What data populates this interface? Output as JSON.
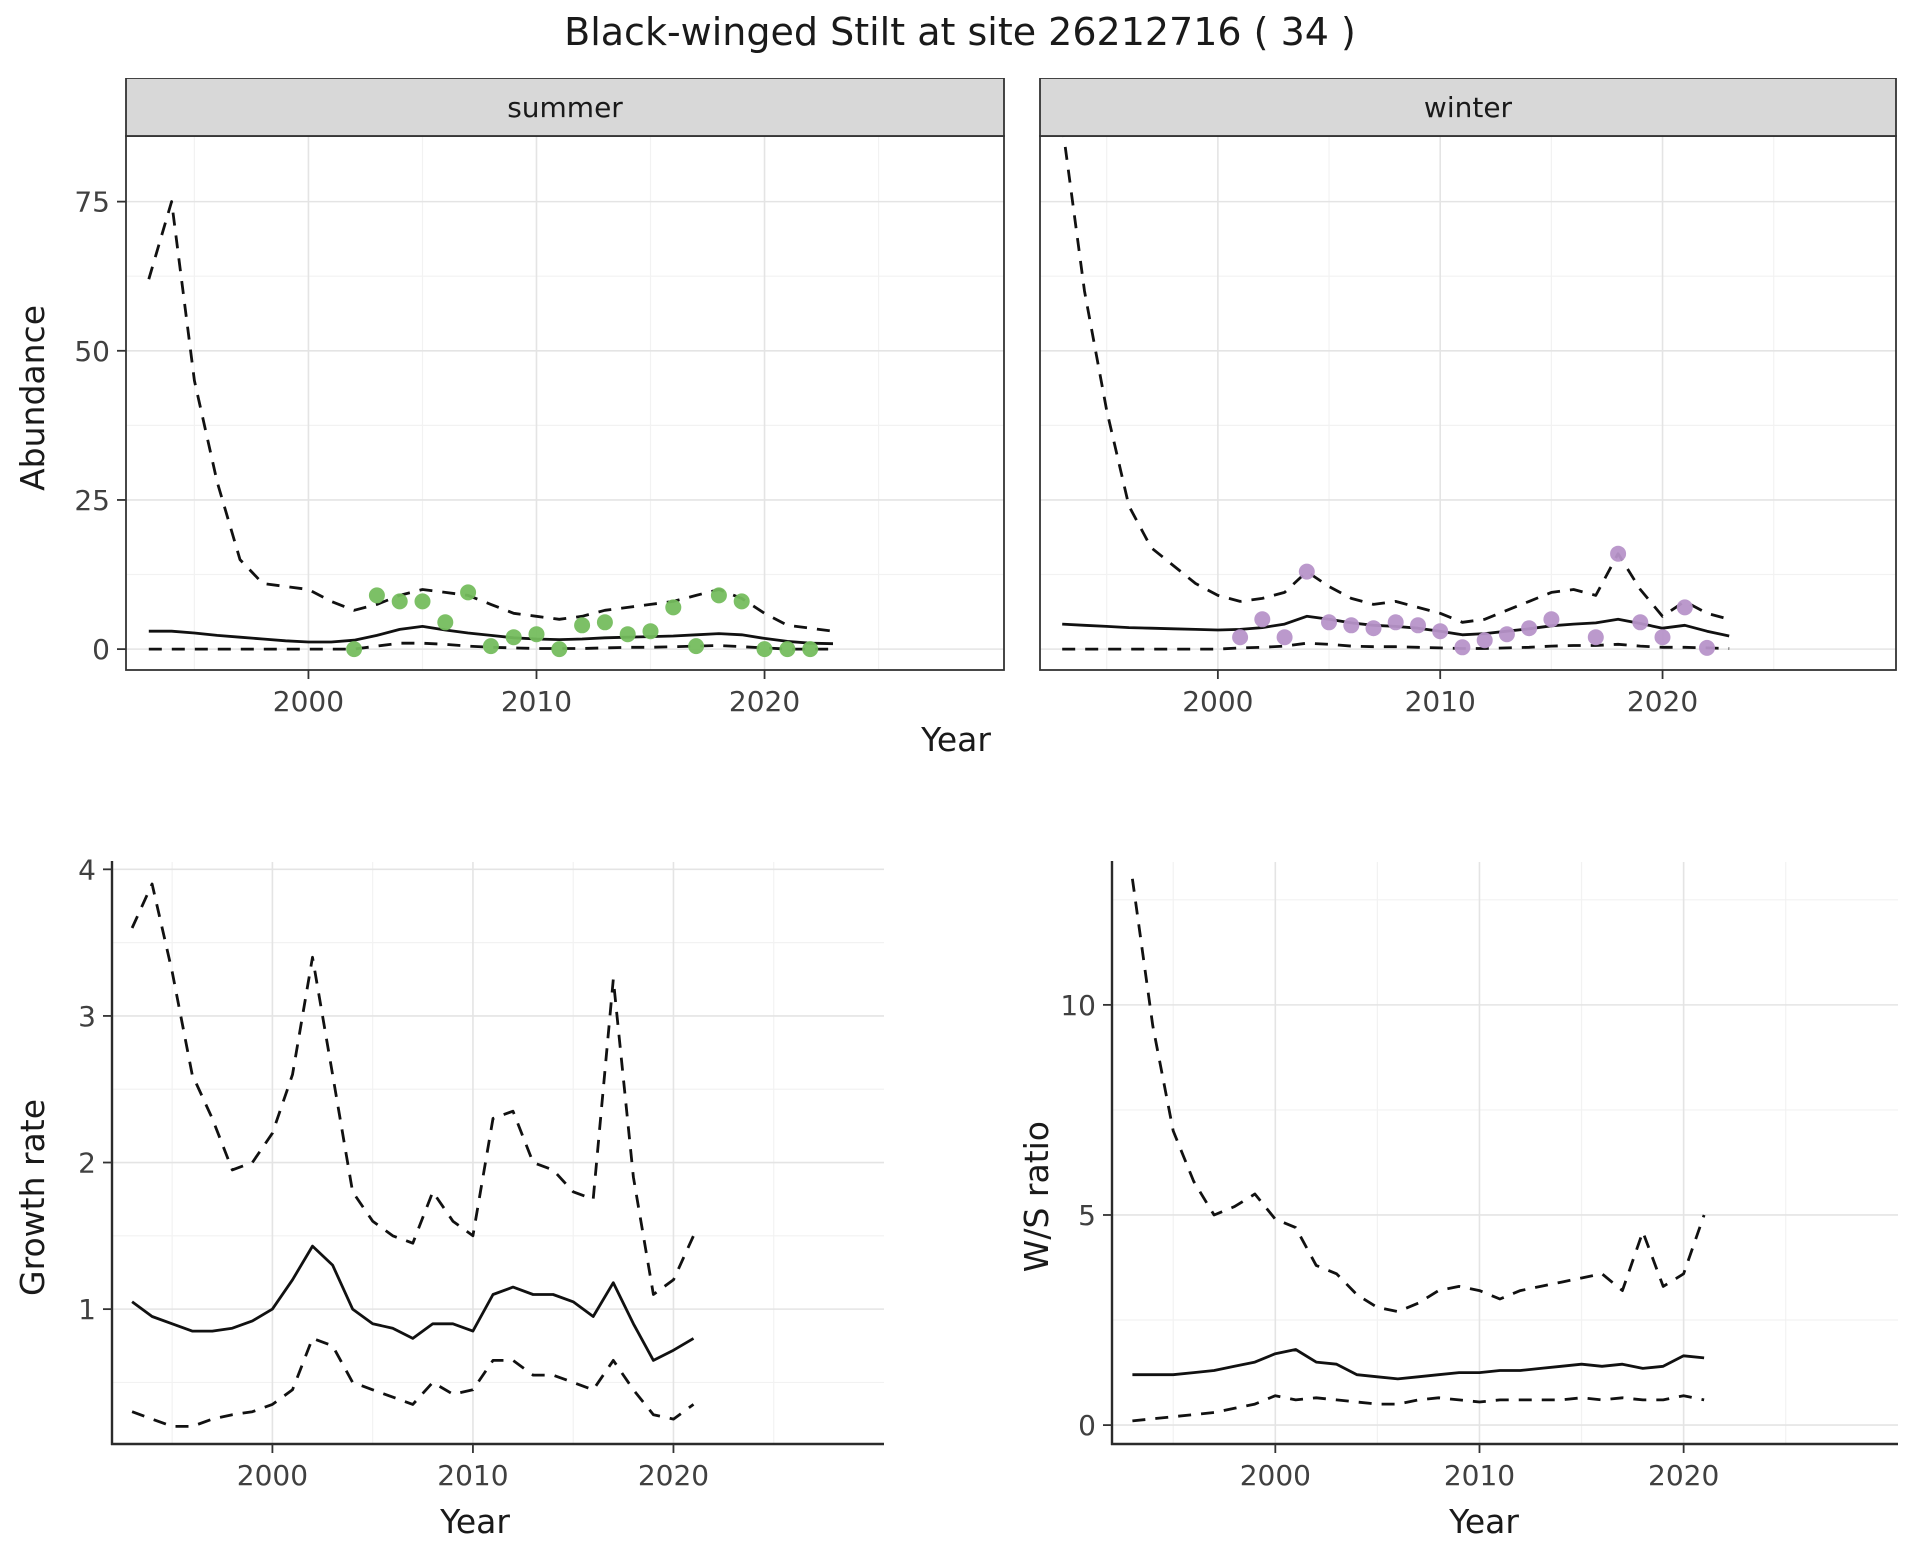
{
  "title": "Black-winged Stilt at site 26212716 ( 34 )",
  "labels": {
    "year": "Year"
  },
  "colors": {
    "line": "#111111",
    "grid_major": "#e4e4e4",
    "grid_minor": "#f2f2f2",
    "panel_border": "#333333",
    "axis_line": "#2b2b2b",
    "strip_bg": "#d8d8d8",
    "axis_text": "#404040",
    "summer_points": "#75bd5e",
    "winter_points": "#b793c9"
  },
  "chart_data": [
    {
      "id": "abundance-summer",
      "type": "line",
      "title": "summer",
      "xlabel": "Year",
      "ylabel": "Abundance",
      "xlim": [
        1992,
        2030.5
      ],
      "ylim": [
        -3.5,
        86
      ],
      "xticks": [
        2000,
        2010,
        2020
      ],
      "yticks": [
        0,
        25,
        50,
        75
      ],
      "xminor": [
        1995,
        2005,
        2015,
        2025
      ],
      "yminor": [
        12.5,
        37.5,
        62.5
      ],
      "x": [
        1993,
        1994,
        1995,
        1996,
        1997,
        1998,
        1999,
        2000,
        2001,
        2002,
        2003,
        2004,
        2005,
        2006,
        2007,
        2008,
        2009,
        2010,
        2011,
        2012,
        2013,
        2014,
        2015,
        2016,
        2017,
        2018,
        2019,
        2020,
        2021,
        2022,
        2023
      ],
      "series": [
        {
          "name": "upper-ci",
          "style": "dashed",
          "y": [
            62,
            75,
            45,
            28,
            15,
            11,
            10.5,
            10,
            8,
            6.5,
            7.5,
            9,
            10,
            9.5,
            9,
            7.5,
            6,
            5.5,
            5,
            5.5,
            6.5,
            7,
            7.5,
            8,
            9,
            10,
            8.5,
            6,
            4,
            3.5,
            3
          ]
        },
        {
          "name": "predicted-mean",
          "style": "solid",
          "y": [
            3,
            3,
            2.7,
            2.3,
            2,
            1.7,
            1.4,
            1.2,
            1.2,
            1.5,
            2.3,
            3.3,
            3.8,
            3.2,
            2.7,
            2.3,
            1.9,
            1.7,
            1.6,
            1.7,
            1.9,
            2,
            2.1,
            2.2,
            2.4,
            2.6,
            2.4,
            1.8,
            1.3,
            1,
            0.9
          ]
        },
        {
          "name": "lower-ci",
          "style": "dashed",
          "y": [
            0,
            0,
            0,
            0,
            0,
            0,
            0,
            0,
            0,
            0,
            0.5,
            1,
            1,
            0.8,
            0.5,
            0.3,
            0.2,
            0.1,
            0.1,
            0.1,
            0.2,
            0.3,
            0.3,
            0.4,
            0.5,
            0.6,
            0.4,
            0.2,
            0,
            0,
            0
          ]
        },
        {
          "name": "observed-counts",
          "style": "points",
          "color": "#75bd5e",
          "x": [
            2002,
            2003,
            2004,
            2005,
            2006,
            2007,
            2008,
            2009,
            2010,
            2011,
            2012,
            2013,
            2014,
            2015,
            2016,
            2017,
            2018,
            2019,
            2020,
            2021,
            2022
          ],
          "y": [
            0,
            9,
            8,
            8,
            4.5,
            9.5,
            0.5,
            2,
            2.5,
            0,
            4,
            4.5,
            2.5,
            3,
            7,
            0.5,
            9,
            8,
            0,
            0,
            0
          ]
        }
      ]
    },
    {
      "id": "abundance-winter",
      "type": "line",
      "title": "winter",
      "xlabel": "Year",
      "ylabel": "Abundance",
      "xlim": [
        1992,
        2030.5
      ],
      "ylim": [
        -3.5,
        86
      ],
      "xticks": [
        2000,
        2010,
        2020
      ],
      "yticks": [
        0,
        25,
        50,
        75
      ],
      "xminor": [
        1995,
        2005,
        2015,
        2025
      ],
      "yminor": [
        12.5,
        37.5,
        62.5
      ],
      "x": [
        1993,
        1994,
        1995,
        1996,
        1997,
        1998,
        1999,
        2000,
        2001,
        2002,
        2003,
        2004,
        2005,
        2006,
        2007,
        2008,
        2009,
        2010,
        2011,
        2012,
        2013,
        2014,
        2015,
        2016,
        2017,
        2018,
        2019,
        2020,
        2021,
        2022,
        2023
      ],
      "series": [
        {
          "name": "upper-ci",
          "style": "dashed",
          "y": [
            88,
            60,
            40,
            24,
            17,
            14,
            11,
            9,
            8,
            8.5,
            9.5,
            13,
            10.5,
            8.5,
            7.5,
            8,
            7,
            6,
            4.5,
            5,
            6.5,
            8,
            9.5,
            10,
            9,
            16,
            10,
            5.5,
            8,
            6,
            5
          ]
        },
        {
          "name": "predicted-mean",
          "style": "solid",
          "y": [
            4.2,
            4,
            3.8,
            3.6,
            3.5,
            3.4,
            3.3,
            3.2,
            3.3,
            3.6,
            4.2,
            5.5,
            5,
            4.4,
            4,
            3.8,
            3.5,
            3,
            2.4,
            2.6,
            3,
            3.4,
            3.9,
            4.2,
            4.4,
            5,
            4.3,
            3.5,
            4,
            3,
            2.2
          ]
        },
        {
          "name": "lower-ci",
          "style": "dashed",
          "y": [
            0,
            0,
            0,
            0,
            0,
            0,
            0,
            0,
            0.2,
            0.3,
            0.5,
            1,
            0.8,
            0.5,
            0.4,
            0.4,
            0.3,
            0.2,
            0.1,
            0.1,
            0.2,
            0.3,
            0.5,
            0.6,
            0.6,
            0.8,
            0.5,
            0.3,
            0.3,
            0.2,
            0.1
          ]
        },
        {
          "name": "observed-counts",
          "style": "points",
          "color": "#b793c9",
          "x": [
            2001,
            2002,
            2003,
            2004,
            2005,
            2006,
            2007,
            2008,
            2009,
            2010,
            2011,
            2012,
            2013,
            2014,
            2015,
            2017,
            2018,
            2019,
            2020,
            2021,
            2022
          ],
          "y": [
            2,
            5,
            2,
            13,
            4.5,
            4,
            3.5,
            4.5,
            4,
            3,
            0.3,
            1.5,
            2.5,
            3.5,
            5,
            2,
            16,
            4.5,
            2,
            7,
            0.2
          ]
        }
      ]
    },
    {
      "id": "growth-rate",
      "type": "line",
      "title": "",
      "xlabel": "Year",
      "ylabel": "Growth rate",
      "xlim": [
        1992,
        2030.5
      ],
      "ylim": [
        0.08,
        4.05
      ],
      "xticks": [
        2000,
        2010,
        2020
      ],
      "yticks": [
        1,
        2,
        3,
        4
      ],
      "xminor": [
        1995,
        2005,
        2015,
        2025
      ],
      "yminor": [
        0.5,
        1.5,
        2.5,
        3.5
      ],
      "x": [
        1993,
        1994,
        1995,
        1996,
        1997,
        1998,
        1999,
        2000,
        2001,
        2002,
        2003,
        2004,
        2005,
        2006,
        2007,
        2008,
        2009,
        2010,
        2011,
        2012,
        2013,
        2014,
        2015,
        2016,
        2017,
        2018,
        2019,
        2020,
        2021
      ],
      "series": [
        {
          "name": "upper-ci",
          "style": "dashed",
          "y": [
            3.6,
            3.9,
            3.3,
            2.6,
            2.3,
            1.95,
            2.0,
            2.2,
            2.6,
            3.4,
            2.6,
            1.8,
            1.6,
            1.5,
            1.45,
            1.8,
            1.6,
            1.5,
            2.3,
            2.35,
            2.0,
            1.95,
            1.8,
            1.75,
            3.25,
            1.9,
            1.1,
            1.2,
            1.5
          ]
        },
        {
          "name": "median",
          "style": "solid",
          "y": [
            1.05,
            0.95,
            0.9,
            0.85,
            0.85,
            0.87,
            0.92,
            1.0,
            1.2,
            1.43,
            1.3,
            1.0,
            0.9,
            0.87,
            0.8,
            0.9,
            0.9,
            0.85,
            1.1,
            1.15,
            1.1,
            1.1,
            1.05,
            0.95,
            1.18,
            0.9,
            0.65,
            0.72,
            0.8
          ]
        },
        {
          "name": "lower-ci",
          "style": "dashed",
          "y": [
            0.3,
            0.25,
            0.2,
            0.2,
            0.25,
            0.28,
            0.3,
            0.35,
            0.45,
            0.8,
            0.75,
            0.5,
            0.45,
            0.4,
            0.35,
            0.5,
            0.42,
            0.45,
            0.65,
            0.65,
            0.55,
            0.55,
            0.5,
            0.45,
            0.65,
            0.45,
            0.28,
            0.25,
            0.35
          ]
        }
      ]
    },
    {
      "id": "ws-ratio",
      "type": "line",
      "title": "",
      "xlabel": "Year",
      "ylabel": "W/S ratio",
      "xlim": [
        1992,
        2030.5
      ],
      "ylim": [
        -0.45,
        13.4
      ],
      "xticks": [
        2000,
        2010,
        2020
      ],
      "yticks": [
        0,
        5,
        10
      ],
      "xminor": [
        1995,
        2005,
        2015,
        2025
      ],
      "yminor": [
        2.5,
        7.5,
        12.5
      ],
      "x": [
        1993,
        1994,
        1995,
        1996,
        1997,
        1998,
        1999,
        2000,
        2001,
        2002,
        2003,
        2004,
        2005,
        2006,
        2007,
        2008,
        2009,
        2010,
        2011,
        2012,
        2013,
        2014,
        2015,
        2016,
        2017,
        2018,
        2019,
        2020,
        2021
      ],
      "series": [
        {
          "name": "upper-ci",
          "style": "dashed",
          "y": [
            13,
            9.5,
            7,
            5.8,
            5,
            5.2,
            5.5,
            4.9,
            4.7,
            3.8,
            3.6,
            3.1,
            2.8,
            2.7,
            2.9,
            3.2,
            3.3,
            3.2,
            3,
            3.2,
            3.3,
            3.4,
            3.5,
            3.6,
            3.2,
            4.6,
            3.3,
            3.6,
            5
          ]
        },
        {
          "name": "median",
          "style": "solid",
          "y": [
            1.2,
            1.2,
            1.2,
            1.25,
            1.3,
            1.4,
            1.5,
            1.7,
            1.8,
            1.5,
            1.45,
            1.2,
            1.15,
            1.1,
            1.15,
            1.2,
            1.25,
            1.25,
            1.3,
            1.3,
            1.35,
            1.4,
            1.45,
            1.4,
            1.45,
            1.35,
            1.4,
            1.65,
            1.6
          ]
        },
        {
          "name": "lower-ci",
          "style": "dashed",
          "y": [
            0.1,
            0.15,
            0.2,
            0.25,
            0.3,
            0.4,
            0.5,
            0.7,
            0.6,
            0.65,
            0.6,
            0.55,
            0.5,
            0.5,
            0.6,
            0.65,
            0.6,
            0.55,
            0.6,
            0.6,
            0.6,
            0.6,
            0.65,
            0.6,
            0.65,
            0.6,
            0.6,
            0.7,
            0.6
          ]
        }
      ]
    }
  ]
}
